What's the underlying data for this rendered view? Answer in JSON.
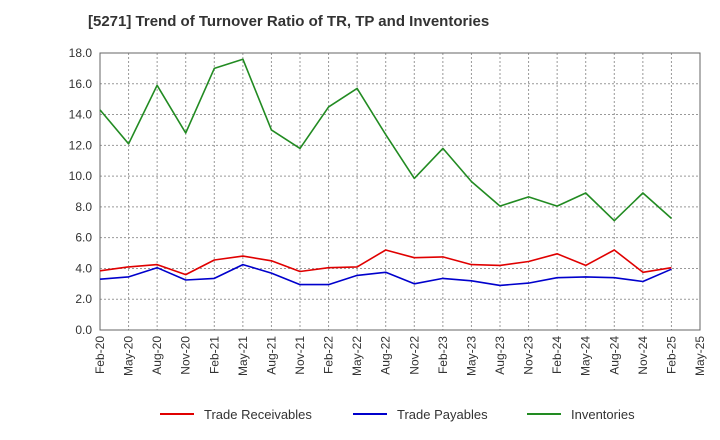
{
  "title": "[5271]  Trend of Turnover Ratio of TR, TP and Inventories",
  "chart_data": {
    "type": "line",
    "title": "[5271]  Trend of Turnover Ratio of TR, TP and Inventories",
    "xlabel": "",
    "ylabel": "",
    "ylim": [
      0,
      18
    ],
    "yticks": [
      "0.0",
      "2.0",
      "4.0",
      "6.0",
      "8.0",
      "10.0",
      "12.0",
      "14.0",
      "16.0",
      "18.0"
    ],
    "x": [
      "Feb-20",
      "May-20",
      "Aug-20",
      "Nov-20",
      "Feb-21",
      "May-21",
      "Aug-21",
      "Nov-21",
      "Feb-22",
      "May-22",
      "Aug-22",
      "Nov-22",
      "Feb-23",
      "May-23",
      "Aug-23",
      "Nov-23",
      "Feb-24",
      "May-24",
      "Aug-24",
      "Nov-24",
      "Feb-25",
      "May-25"
    ],
    "grid": true,
    "legend_position": "bottom",
    "series": [
      {
        "name": "Trade Receivables",
        "color": "#e00000",
        "values": [
          3.85,
          4.1,
          4.25,
          3.6,
          4.55,
          4.8,
          4.5,
          3.8,
          4.05,
          4.1,
          5.2,
          4.7,
          4.75,
          4.25,
          4.2,
          4.45,
          4.95,
          4.2,
          5.2,
          3.75,
          4.05,
          null
        ]
      },
      {
        "name": "Trade Payables",
        "color": "#0000cc",
        "values": [
          3.3,
          3.45,
          4.05,
          3.25,
          3.35,
          4.25,
          3.7,
          2.95,
          2.95,
          3.55,
          3.75,
          3.0,
          3.35,
          3.2,
          2.9,
          3.05,
          3.4,
          3.45,
          3.4,
          3.15,
          3.95,
          null
        ]
      },
      {
        "name": "Inventories",
        "color": "#228b22",
        "values": [
          14.3,
          12.1,
          15.9,
          12.8,
          17.0,
          17.6,
          13.0,
          11.8,
          14.5,
          15.7,
          12.7,
          9.85,
          11.8,
          9.65,
          8.05,
          8.65,
          8.05,
          8.9,
          7.1,
          8.9,
          7.25,
          null
        ]
      }
    ]
  }
}
